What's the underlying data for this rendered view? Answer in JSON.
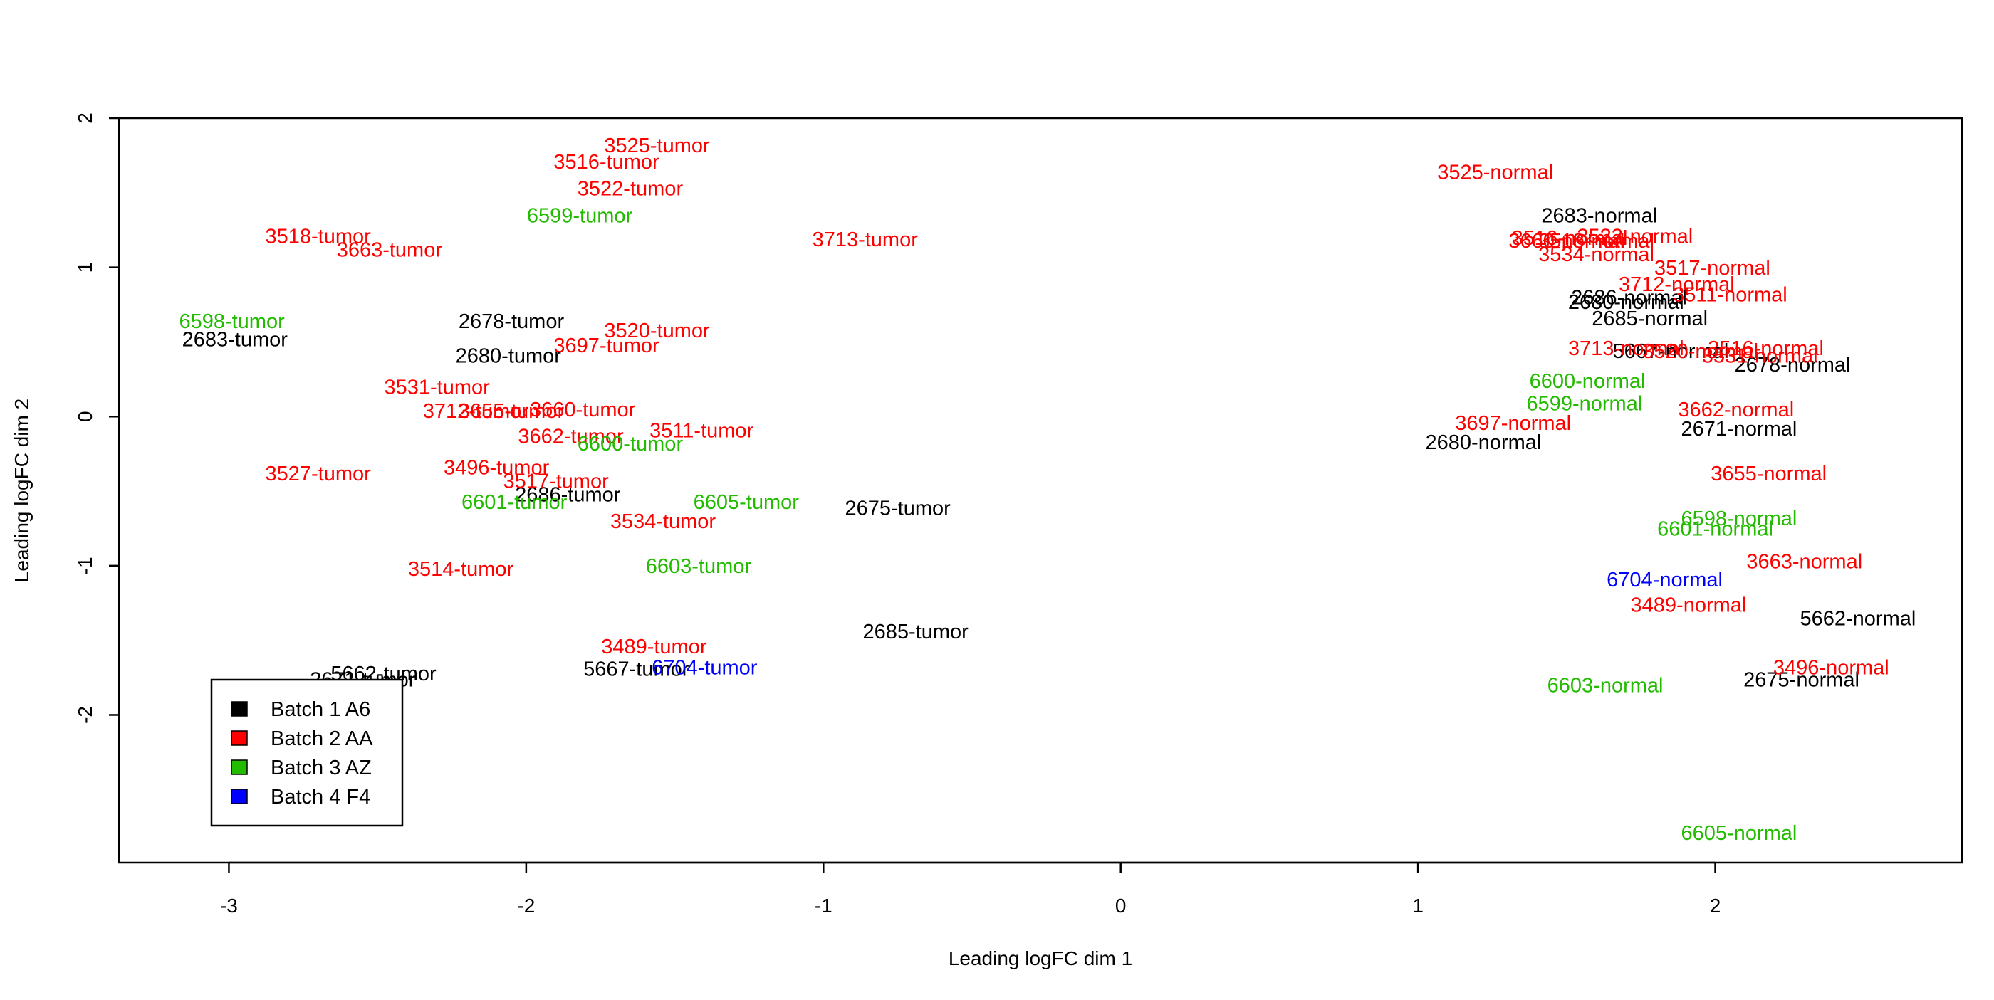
{
  "chart_data": {
    "type": "scatter",
    "title": "",
    "xlabel": "Leading logFC dim 1",
    "ylabel": "Leading logFC dim 2",
    "xlim": [
      -3.37,
      2.83
    ],
    "ylim": [
      -2.99,
      2.0
    ],
    "xticks": [
      -3,
      -2,
      -1,
      0,
      1,
      2
    ],
    "yticks": [
      -2,
      -1,
      0,
      1,
      2
    ],
    "grid": false,
    "legend_position": "bottom-left",
    "series": [
      {
        "name": "Batch 1 A6",
        "color": "#000000",
        "points": [
          {
            "label": "2678-tumor",
            "x": -2.05,
            "y": 0.64
          },
          {
            "label": "2683-tumor",
            "x": -2.98,
            "y": 0.52
          },
          {
            "label": "2680-tumor",
            "x": -2.06,
            "y": 0.41
          },
          {
            "label": "2686-tumor",
            "x": -1.86,
            "y": -0.52
          },
          {
            "label": "2675-tumor",
            "x": -0.75,
            "y": -0.61
          },
          {
            "label": "2685-tumor",
            "x": -0.69,
            "y": -1.44
          },
          {
            "label": "5662-tumor",
            "x": -2.48,
            "y": -1.72
          },
          {
            "label": "2671-tumor",
            "x": -2.55,
            "y": -1.76
          },
          {
            "label": "5667-tumor",
            "x": -1.63,
            "y": -1.69
          },
          {
            "label": "2683-normal",
            "x": 1.61,
            "y": 1.35
          },
          {
            "label": "2686-normal",
            "x": 1.71,
            "y": 0.8
          },
          {
            "label": "2680-normal",
            "x": 1.7,
            "y": 0.77
          },
          {
            "label": "2685-normal",
            "x": 1.78,
            "y": 0.66
          },
          {
            "label": "5667-normal",
            "x": 1.85,
            "y": 0.44
          },
          {
            "label": "2678-normal",
            "x": 2.26,
            "y": 0.35
          },
          {
            "label": "2671-normal",
            "x": 2.08,
            "y": -0.08
          },
          {
            "label": "2680-normal",
            "x": 1.22,
            "y": -0.17
          },
          {
            "label": "5662-normal",
            "x": 2.48,
            "y": -1.35
          },
          {
            "label": "2675-normal",
            "x": 2.29,
            "y": -1.76
          }
        ]
      },
      {
        "name": "Batch 2 AA",
        "color": "#ff0000",
        "points": [
          {
            "label": "3525-tumor",
            "x": -1.56,
            "y": 1.82
          },
          {
            "label": "3516-tumor",
            "x": -1.73,
            "y": 1.71
          },
          {
            "label": "3522-tumor",
            "x": -1.65,
            "y": 1.53
          },
          {
            "label": "3518-tumor",
            "x": -2.7,
            "y": 1.21
          },
          {
            "label": "3663-tumor",
            "x": -2.46,
            "y": 1.12
          },
          {
            "label": "3713-tumor",
            "x": -0.86,
            "y": 1.19
          },
          {
            "label": "3520-tumor",
            "x": -1.56,
            "y": 0.58
          },
          {
            "label": "3697-tumor",
            "x": -1.73,
            "y": 0.48
          },
          {
            "label": "3531-tumor",
            "x": -2.3,
            "y": 0.2
          },
          {
            "label": "3712-tumor",
            "x": -2.17,
            "y": 0.04
          },
          {
            "label": "3655-tumor",
            "x": -2.05,
            "y": 0.04
          },
          {
            "label": "3660-tumor",
            "x": -1.81,
            "y": 0.05
          },
          {
            "label": "3662-tumor",
            "x": -1.85,
            "y": -0.13
          },
          {
            "label": "3511-tumor",
            "x": -1.41,
            "y": -0.09
          },
          {
            "label": "3527-tumor",
            "x": -2.7,
            "y": -0.38
          },
          {
            "label": "3496-tumor",
            "x": -2.1,
            "y": -0.34
          },
          {
            "label": "3517-tumor",
            "x": -1.9,
            "y": -0.43
          },
          {
            "label": "3534-tumor",
            "x": -1.54,
            "y": -0.7
          },
          {
            "label": "3514-tumor",
            "x": -2.22,
            "y": -1.02
          },
          {
            "label": "3489-tumor",
            "x": -1.57,
            "y": -1.54
          },
          {
            "label": "3525-normal",
            "x": 1.26,
            "y": 1.64
          },
          {
            "label": "3516-normal",
            "x": 1.51,
            "y": 1.2
          },
          {
            "label": "3522-normal",
            "x": 1.73,
            "y": 1.21
          },
          {
            "label": "3518-normal",
            "x": 1.6,
            "y": 1.18
          },
          {
            "label": "3660-normal",
            "x": 1.5,
            "y": 1.18
          },
          {
            "label": "3534-normal",
            "x": 1.6,
            "y": 1.09
          },
          {
            "label": "3517-normal",
            "x": 1.99,
            "y": 1.0
          },
          {
            "label": "3712-normal",
            "x": 1.87,
            "y": 0.89
          },
          {
            "label": "3511-normal",
            "x": 2.05,
            "y": 0.82
          },
          {
            "label": "3713-normal",
            "x": 1.7,
            "y": 0.46
          },
          {
            "label": "3520-normal",
            "x": 1.95,
            "y": 0.44
          },
          {
            "label": "3516-normal",
            "x": 2.17,
            "y": 0.46
          },
          {
            "label": "3531-normal",
            "x": 2.15,
            "y": 0.41
          },
          {
            "label": "3662-normal",
            "x": 2.07,
            "y": 0.05
          },
          {
            "label": "3697-normal",
            "x": 1.32,
            "y": -0.04
          },
          {
            "label": "3655-normal",
            "x": 2.18,
            "y": -0.38
          },
          {
            "label": "3663-normal",
            "x": 2.3,
            "y": -0.97
          },
          {
            "label": "3489-normal",
            "x": 1.91,
            "y": -1.26
          },
          {
            "label": "3496-normal",
            "x": 2.39,
            "y": -1.68
          }
        ]
      },
      {
        "name": "Batch 3 AZ",
        "color": "#22bb00",
        "points": [
          {
            "label": "6599-tumor",
            "x": -1.82,
            "y": 1.35
          },
          {
            "label": "6598-tumor",
            "x": -2.99,
            "y": 0.64
          },
          {
            "label": "6600-tumor",
            "x": -1.65,
            "y": -0.18
          },
          {
            "label": "6601-tumor",
            "x": -2.04,
            "y": -0.57
          },
          {
            "label": "6605-tumor",
            "x": -1.26,
            "y": -0.57
          },
          {
            "label": "6603-tumor",
            "x": -1.42,
            "y": -1.0
          },
          {
            "label": "6600-normal",
            "x": 1.57,
            "y": 0.24
          },
          {
            "label": "6599-normal",
            "x": 1.56,
            "y": 0.09
          },
          {
            "label": "6598-normal",
            "x": 2.08,
            "y": -0.68
          },
          {
            "label": "6601-normal",
            "x": 2.0,
            "y": -0.75
          },
          {
            "label": "6603-normal",
            "x": 1.63,
            "y": -1.8
          },
          {
            "label": "6605-normal",
            "x": 2.08,
            "y": -2.79
          }
        ]
      },
      {
        "name": "Batch 4 F4",
        "color": "#0000ff",
        "points": [
          {
            "label": "6704-tumor",
            "x": -1.4,
            "y": -1.68
          },
          {
            "label": "6704-normal",
            "x": 1.83,
            "y": -1.09
          }
        ]
      }
    ]
  }
}
